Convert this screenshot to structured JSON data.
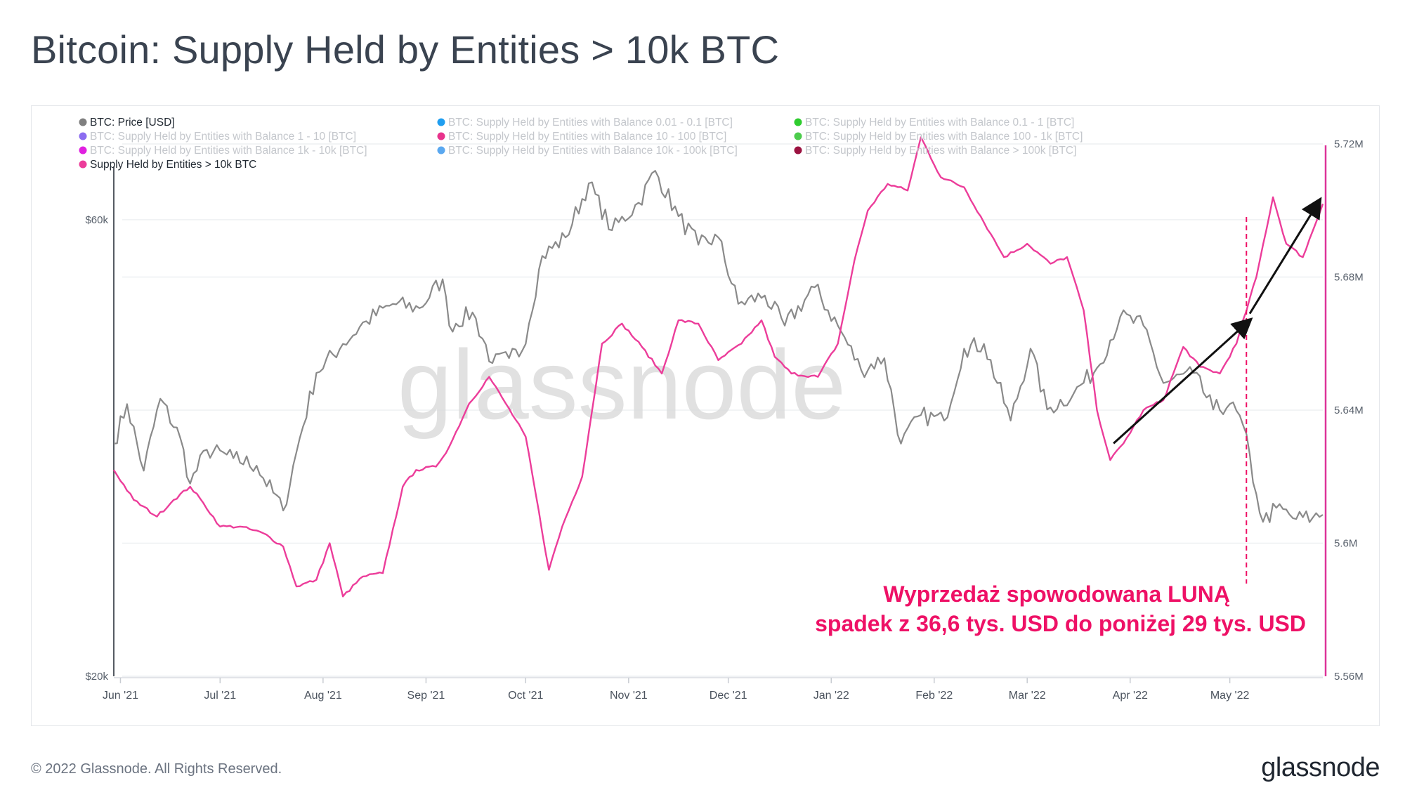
{
  "title": "Bitcoin: Supply Held by Entities > 10k BTC",
  "footer": {
    "copyright": "© 2022 Glassnode. All Rights Reserved.",
    "logo": "glassnode"
  },
  "watermark": "glassnode",
  "annotation": {
    "line1": "Wyprzedaż spowodowana LUNĄ",
    "line2": "spadek z 36,6 tys. USD do poniżej 29 tys. USD",
    "color": "#ee1166",
    "event_date": "2022-05-06"
  },
  "colors": {
    "price": "#8a8a8a",
    "supply": "#ec3d9a",
    "axis": "#555b63",
    "grid": "#eef0f2",
    "right_axis": "#dd3399",
    "arrow": "#111111"
  },
  "chart_data": {
    "type": "line",
    "x_ticks": [
      "Jun '21",
      "Jul '21",
      "Aug '21",
      "Sep '21",
      "Oct '21",
      "Nov '21",
      "Dec '21",
      "Jan '22",
      "Feb '22",
      "Mar '22",
      "Apr '22",
      "May '22"
    ],
    "x_tick_dates": [
      "2021-06-01",
      "2021-07-01",
      "2021-08-01",
      "2021-09-01",
      "2021-10-01",
      "2021-11-01",
      "2021-12-01",
      "2022-01-01",
      "2022-02-01",
      "2022-03-01",
      "2022-04-01",
      "2022-05-01"
    ],
    "x_range": [
      "2021-05-30",
      "2022-05-29"
    ],
    "y_left": {
      "ticks": [
        "$20k",
        "$60k"
      ],
      "tick_values": [
        20000,
        60000
      ],
      "range": [
        20000,
        72000
      ],
      "scale": "log",
      "label": ""
    },
    "y_right": {
      "ticks": [
        "5.56M",
        "5.6M",
        "5.64M",
        "5.68M",
        "5.72M"
      ],
      "tick_values": [
        5560000,
        5600000,
        5640000,
        5680000,
        5720000
      ],
      "range": [
        5560000,
        5720000
      ],
      "label": ""
    },
    "legend": {
      "placement": "top-left",
      "items": [
        {
          "label": "BTC: Price [USD]",
          "color": "#7f7f7f",
          "active": true
        },
        {
          "label": "BTC: Supply Held by Entities with Balance 0.01 - 0.1 [BTC]",
          "color": "#1f9ef0",
          "active": false
        },
        {
          "label": "BTC: Supply Held by Entities with Balance 0.1 - 1 [BTC]",
          "color": "#2ecc2e",
          "active": false
        },
        {
          "label": "BTC: Supply Held by Entities with Balance 1 - 10 [BTC]",
          "color": "#8b6cf0",
          "active": false
        },
        {
          "label": "BTC: Supply Held by Entities with Balance 10 - 100 [BTC]",
          "color": "#e8338c",
          "active": false
        },
        {
          "label": "BTC: Supply Held by Entities with Balance 100 - 1k [BTC]",
          "color": "#4ccc4c",
          "active": false
        },
        {
          "label": "BTC: Supply Held by Entities with Balance 1k - 10k [BTC]",
          "color": "#e020e0",
          "active": false
        },
        {
          "label": "BTC: Supply Held by Entities with Balance 10k - 100k [BTC]",
          "color": "#5aa8f0",
          "active": false
        },
        {
          "label": "BTC: Supply Held by Entities with Balance > 100k [BTC]",
          "color": "#9b1240",
          "active": false
        },
        {
          "label": "Supply Held by Entities > 10k BTC",
          "color": "#ec3d9a",
          "active": true
        }
      ]
    },
    "series": [
      {
        "name": "BTC: Price [USD]",
        "axis": "left",
        "points": [
          [
            "2021-05-30",
            35000
          ],
          [
            "2021-06-03",
            38500
          ],
          [
            "2021-06-08",
            32800
          ],
          [
            "2021-06-13",
            39000
          ],
          [
            "2021-06-19",
            35500
          ],
          [
            "2021-06-22",
            31800
          ],
          [
            "2021-06-27",
            34500
          ],
          [
            "2021-07-05",
            33800
          ],
          [
            "2021-07-12",
            33200
          ],
          [
            "2021-07-20",
            29800
          ],
          [
            "2021-07-25",
            35500
          ],
          [
            "2021-07-30",
            41500
          ],
          [
            "2021-08-07",
            44500
          ],
          [
            "2021-08-14",
            47000
          ],
          [
            "2021-08-22",
            49000
          ],
          [
            "2021-08-30",
            48500
          ],
          [
            "2021-09-06",
            52000
          ],
          [
            "2021-09-08",
            46500
          ],
          [
            "2021-09-15",
            48000
          ],
          [
            "2021-09-21",
            42500
          ],
          [
            "2021-09-26",
            43000
          ],
          [
            "2021-09-30",
            43800
          ],
          [
            "2021-10-06",
            55000
          ],
          [
            "2021-10-13",
            57500
          ],
          [
            "2021-10-20",
            65500
          ],
          [
            "2021-10-27",
            58500
          ],
          [
            "2021-11-04",
            62500
          ],
          [
            "2021-11-09",
            67500
          ],
          [
            "2021-11-16",
            60500
          ],
          [
            "2021-11-22",
            56500
          ],
          [
            "2021-11-28",
            57500
          ],
          [
            "2021-12-04",
            49000
          ],
          [
            "2021-12-12",
            50000
          ],
          [
            "2021-12-18",
            46500
          ],
          [
            "2021-12-27",
            51000
          ],
          [
            "2022-01-03",
            46500
          ],
          [
            "2022-01-10",
            41800
          ],
          [
            "2022-01-17",
            43000
          ],
          [
            "2022-01-22",
            35000
          ],
          [
            "2022-01-28",
            37500
          ],
          [
            "2022-02-04",
            37000
          ],
          [
            "2022-02-10",
            44000
          ],
          [
            "2022-02-16",
            44500
          ],
          [
            "2022-02-24",
            37000
          ],
          [
            "2022-03-02",
            44000
          ],
          [
            "2022-03-07",
            38000
          ],
          [
            "2022-03-15",
            39500
          ],
          [
            "2022-03-22",
            42000
          ],
          [
            "2022-03-29",
            47500
          ],
          [
            "2022-04-05",
            46500
          ],
          [
            "2022-04-11",
            40500
          ],
          [
            "2022-04-20",
            41500
          ],
          [
            "2022-04-26",
            38000
          ],
          [
            "2022-05-01",
            38500
          ],
          [
            "2022-05-05",
            36600
          ],
          [
            "2022-05-09",
            31000
          ],
          [
            "2022-05-11",
            29000
          ],
          [
            "2022-05-15",
            30000
          ],
          [
            "2022-05-21",
            29200
          ],
          [
            "2022-05-26",
            29300
          ],
          [
            "2022-05-29",
            29500
          ]
        ]
      },
      {
        "name": "Supply Held by Entities > 10k BTC",
        "axis": "right",
        "points": [
          [
            "2021-05-30",
            5622000
          ],
          [
            "2021-06-05",
            5613000
          ],
          [
            "2021-06-12",
            5608000
          ],
          [
            "2021-06-17",
            5613000
          ],
          [
            "2021-06-22",
            5617000
          ],
          [
            "2021-06-26",
            5612000
          ],
          [
            "2021-07-01",
            5605000
          ],
          [
            "2021-07-07",
            5605000
          ],
          [
            "2021-07-14",
            5603000
          ],
          [
            "2021-07-20",
            5599000
          ],
          [
            "2021-07-24",
            5587000
          ],
          [
            "2021-07-30",
            5589000
          ],
          [
            "2021-08-03",
            5600000
          ],
          [
            "2021-08-07",
            5584000
          ],
          [
            "2021-08-13",
            5590000
          ],
          [
            "2021-08-19",
            5591000
          ],
          [
            "2021-08-25",
            5617000
          ],
          [
            "2021-08-29",
            5622000
          ],
          [
            "2021-09-04",
            5623000
          ],
          [
            "2021-09-08",
            5629000
          ],
          [
            "2021-09-14",
            5642000
          ],
          [
            "2021-09-20",
            5650000
          ],
          [
            "2021-09-25",
            5642000
          ],
          [
            "2021-10-01",
            5632000
          ],
          [
            "2021-10-08",
            5592000
          ],
          [
            "2021-10-12",
            5605000
          ],
          [
            "2021-10-18",
            5620000
          ],
          [
            "2021-10-24",
            5660000
          ],
          [
            "2021-10-30",
            5666000
          ],
          [
            "2021-11-05",
            5659000
          ],
          [
            "2021-11-11",
            5651000
          ],
          [
            "2021-11-16",
            5667000
          ],
          [
            "2021-11-22",
            5666000
          ],
          [
            "2021-11-28",
            5655000
          ],
          [
            "2021-12-05",
            5660000
          ],
          [
            "2021-12-11",
            5667000
          ],
          [
            "2021-12-15",
            5656000
          ],
          [
            "2021-12-20",
            5651000
          ],
          [
            "2021-12-28",
            5650000
          ],
          [
            "2022-01-03",
            5660000
          ],
          [
            "2022-01-08",
            5685000
          ],
          [
            "2022-01-12",
            5700000
          ],
          [
            "2022-01-18",
            5708000
          ],
          [
            "2022-01-24",
            5706000
          ],
          [
            "2022-01-28",
            5722000
          ],
          [
            "2022-02-03",
            5710000
          ],
          [
            "2022-02-10",
            5707000
          ],
          [
            "2022-02-18",
            5693000
          ],
          [
            "2022-02-22",
            5686000
          ],
          [
            "2022-03-01",
            5690000
          ],
          [
            "2022-03-08",
            5684000
          ],
          [
            "2022-03-13",
            5686000
          ],
          [
            "2022-03-18",
            5670000
          ],
          [
            "2022-03-22",
            5640000
          ],
          [
            "2022-03-26",
            5625000
          ],
          [
            "2022-03-30",
            5630000
          ],
          [
            "2022-04-05",
            5640000
          ],
          [
            "2022-04-11",
            5643000
          ],
          [
            "2022-04-17",
            5659000
          ],
          [
            "2022-04-22",
            5653000
          ],
          [
            "2022-04-28",
            5651000
          ],
          [
            "2022-05-03",
            5660000
          ],
          [
            "2022-05-09",
            5680000
          ],
          [
            "2022-05-14",
            5704000
          ],
          [
            "2022-05-18",
            5690000
          ],
          [
            "2022-05-23",
            5686000
          ],
          [
            "2022-05-29",
            5702000
          ]
        ]
      }
    ],
    "trend_arrows": [
      {
        "from": [
          "2022-03-27",
          5630000
        ],
        "to": [
          "2022-05-07",
          5667000
        ]
      },
      {
        "from": [
          "2022-05-07",
          5669000
        ],
        "to": [
          "2022-05-28",
          5703000
        ]
      }
    ]
  }
}
